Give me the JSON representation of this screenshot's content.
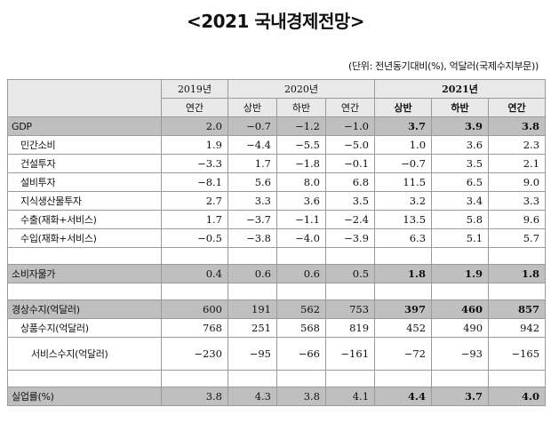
{
  "title": "<2021 국내경제전망>",
  "unit_note": "(단위: 전년동기대비(%), 억달러(국제수지부문))",
  "headers": {
    "year_2019": "2019년",
    "year_2020": "2020년",
    "year_2021": "2021년",
    "sub": [
      "연간",
      "상반",
      "하반",
      "연간",
      "상반",
      "하반",
      "연간"
    ]
  },
  "rows": [
    {
      "label": "GDP",
      "values": [
        "2.0",
        "−0.7",
        "−1.2",
        "−1.0",
        "3.7",
        "3.9",
        "3.8"
      ]
    },
    {
      "label": "민간소비",
      "values": [
        "1.9",
        "−4.4",
        "−5.5",
        "−5.0",
        "1.0",
        "3.6",
        "2.3"
      ]
    },
    {
      "label": "건설투자",
      "values": [
        "−3.3",
        "1.7",
        "−1.8",
        "−0.1",
        "−0.7",
        "3.5",
        "2.1"
      ]
    },
    {
      "label": "설비투자",
      "values": [
        "−8.1",
        "5.6",
        "8.0",
        "6.8",
        "11.5",
        "6.5",
        "9.0"
      ]
    },
    {
      "label": "지식생산물투자",
      "values": [
        "2.7",
        "3.3",
        "3.6",
        "3.5",
        "3.2",
        "3.4",
        "3.3"
      ]
    },
    {
      "label": "수출(재화+서비스)",
      "values": [
        "1.7",
        "−3.7",
        "−1.1",
        "−2.4",
        "13.5",
        "5.8",
        "9.6"
      ]
    },
    {
      "label": "수입(재화+서비스)",
      "values": [
        "−0.5",
        "−3.8",
        "−4.0",
        "−3.9",
        "6.3",
        "5.1",
        "5.7"
      ]
    },
    {
      "label": "소비자물가",
      "values": [
        "0.4",
        "0.6",
        "0.6",
        "0.5",
        "1.8",
        "1.9",
        "1.8"
      ]
    },
    {
      "label": "경상수지(억달러)",
      "values": [
        "600",
        "191",
        "562",
        "753",
        "397",
        "460",
        "857"
      ]
    },
    {
      "label": "상품수지(억달러)",
      "values": [
        "768",
        "251",
        "568",
        "819",
        "452",
        "490",
        "942"
      ]
    },
    {
      "label": "서비스수지(억달러)",
      "values": [
        "−230",
        "−95",
        "−66",
        "−161",
        "−72",
        "−93",
        "−165"
      ]
    },
    {
      "label": "실업률(%)",
      "values": [
        "3.8",
        "4.3",
        "3.8",
        "4.1",
        "4.4",
        "3.7",
        "4.0"
      ]
    }
  ]
}
